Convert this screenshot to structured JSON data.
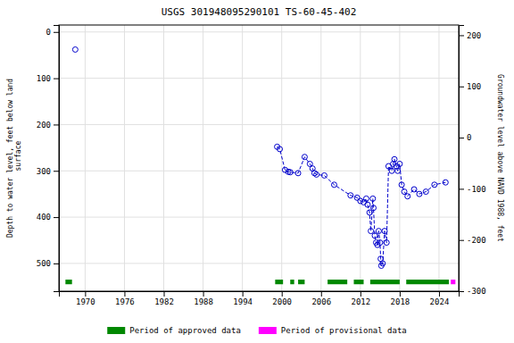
{
  "chart_data": {
    "type": "line",
    "title": "USGS 301948095290101 TS-60-45-402",
    "y_label": "Depth to water level, feet below land\n surface",
    "y2_label": "Groundwater level above NAVD 1988, feet",
    "xlim": [
      1966,
      2027
    ],
    "xticks": [
      1970,
      1976,
      1982,
      1988,
      1994,
      2000,
      2006,
      2012,
      2018,
      2024
    ],
    "ylim": [
      560,
      -15
    ],
    "yticks": [
      0,
      100,
      200,
      300,
      400,
      500
    ],
    "y2lim": [
      -300,
      220
    ],
    "y2ticks": [
      200,
      100,
      0,
      -100,
      -200,
      -300
    ],
    "grid": true,
    "legend": "bottom",
    "series": [
      {
        "color": "#0000cc",
        "marker": "circle",
        "line_style": "dashed",
        "x": [
          1968.5
        ],
        "values": [
          38
        ]
      },
      {
        "color": "#0000cc",
        "marker": "circle",
        "line_style": "dashed",
        "x": [
          1999.3,
          1999.7,
          2000.5,
          2001.0,
          2001.3,
          2002.5,
          2003.5,
          2004.3,
          2004.7,
          2005.0,
          2005.3,
          2006.5,
          2008.0,
          2010.5,
          2011.5,
          2012.0,
          2012.5,
          2012.9,
          2013.1,
          2013.4,
          2013.6,
          2013.9,
          2014.0,
          2014.2,
          2014.4,
          2014.6,
          2014.8,
          2015.0,
          2015.1,
          2015.2,
          2015.4,
          2015.7,
          2016.0,
          2016.3,
          2016.8,
          2017.0,
          2017.2,
          2017.5,
          2017.7,
          2018.0,
          2018.3,
          2018.7,
          2019.2,
          2020.2,
          2021.0,
          2022.0,
          2023.3,
          2025.0
        ],
        "values": [
          248,
          253,
          298,
          302,
          303,
          305,
          270,
          285,
          295,
          305,
          308,
          310,
          330,
          353,
          358,
          365,
          368,
          360,
          373,
          390,
          430,
          360,
          380,
          440,
          455,
          460,
          430,
          455,
          490,
          505,
          500,
          430,
          455,
          290,
          300,
          285,
          275,
          290,
          300,
          285,
          330,
          345,
          355,
          340,
          350,
          345,
          330,
          325
        ]
      }
    ],
    "bar_center": 540,
    "bar_height": 10,
    "bands": [
      {
        "name": "Period of approved data",
        "color": "#008800",
        "periods": [
          [
            1967.0,
            1968.0
          ],
          [
            1999.0,
            2000.2
          ],
          [
            2001.3,
            2001.9
          ],
          [
            2002.5,
            2003.5
          ],
          [
            2007.0,
            2010.0
          ],
          [
            2011.0,
            2012.5
          ],
          [
            2013.5,
            2018.0
          ],
          [
            2019.0,
            2025.5
          ]
        ]
      },
      {
        "name": "Period of provisional data",
        "color": "#ff00ff",
        "periods": [
          [
            2025.8,
            2026.5
          ]
        ]
      }
    ]
  }
}
